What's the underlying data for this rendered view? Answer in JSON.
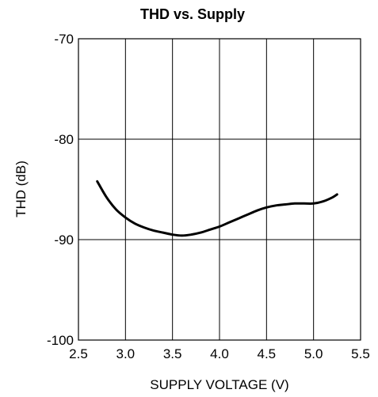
{
  "chart_data": {
    "type": "line",
    "title": "THD vs. Supply",
    "xlabel": "SUPPLY VOLTAGE (V)",
    "ylabel": "THD (dB)",
    "xlim": [
      2.5,
      5.5
    ],
    "ylim": [
      -100,
      -70
    ],
    "x_ticks": [
      2.5,
      3.0,
      3.5,
      4.0,
      4.5,
      5.0,
      5.5
    ],
    "x_tick_labels": [
      "2.5",
      "3.0",
      "3.5",
      "4.0",
      "4.5",
      "5.0",
      "5.5"
    ],
    "y_ticks": [
      -100,
      -90,
      -80,
      -70
    ],
    "y_tick_labels": [
      "-100",
      "-90",
      "-80",
      "-70"
    ],
    "grid": true,
    "series": [
      {
        "color": "#000000",
        "x": [
          2.7,
          2.8,
          2.9,
          3.0,
          3.1,
          3.2,
          3.3,
          3.4,
          3.5,
          3.6,
          3.7,
          3.8,
          3.9,
          4.0,
          4.1,
          4.2,
          4.3,
          4.4,
          4.5,
          4.6,
          4.7,
          4.8,
          4.9,
          5.0,
          5.1,
          5.2,
          5.25
        ],
        "y": [
          -84.2,
          -85.8,
          -87.0,
          -87.8,
          -88.4,
          -88.8,
          -89.1,
          -89.3,
          -89.5,
          -89.6,
          -89.5,
          -89.3,
          -89.0,
          -88.7,
          -88.3,
          -87.9,
          -87.5,
          -87.1,
          -86.8,
          -86.6,
          -86.5,
          -86.4,
          -86.4,
          -86.4,
          -86.2,
          -85.8,
          -85.5
        ]
      }
    ]
  }
}
